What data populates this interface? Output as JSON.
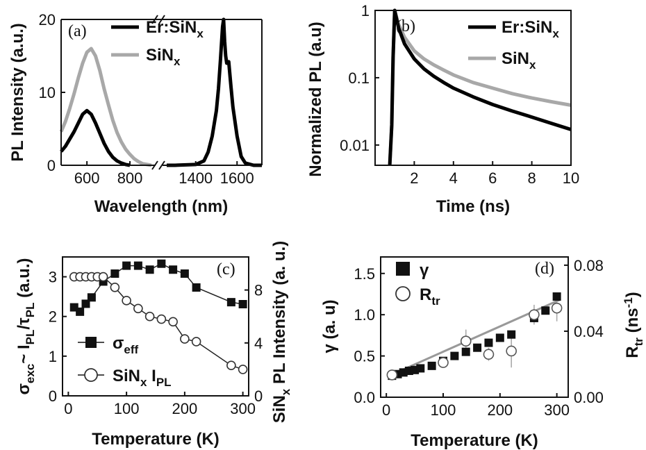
{
  "chart_data": [
    {
      "panel": "(a)",
      "type": "line",
      "xlabel": "Wavelength (nm)",
      "ylabel": "PL Intensity (a.u.)",
      "xlim_left": [
        480,
        900
      ],
      "xlim_right": [
        1260,
        1720
      ],
      "ylim": [
        0,
        20
      ],
      "xticks": [
        600,
        800,
        1400,
        1600
      ],
      "yticks": [
        0,
        10,
        20
      ],
      "axis_break": true,
      "legend_position": "top-right",
      "series": [
        {
          "name": "Er:SiN",
          "name_sub": "x",
          "color": "#000000",
          "segments": [
            {
              "x": [
                480,
                500,
                520,
                540,
                560,
                580,
                600,
                620,
                640,
                660,
                680,
                700,
                720,
                740,
                760,
                780,
                800
              ],
              "y": [
                1.9,
                2.6,
                3.6,
                4.6,
                5.8,
                7.0,
                7.5,
                7.0,
                5.8,
                4.4,
                3.0,
                1.9,
                1.1,
                0.6,
                0.3,
                0.1,
                0.0
              ]
            },
            {
              "x": [
                1260,
                1300,
                1400,
                1440,
                1460,
                1480,
                1500,
                1510,
                1520,
                1530,
                1535,
                1540,
                1545,
                1550,
                1560,
                1570,
                1580,
                1600,
                1620,
                1640,
                1680,
                1720
              ],
              "y": [
                0.0,
                0.0,
                0.1,
                0.6,
                1.8,
                4.0,
                7.5,
                10.5,
                14.5,
                19.0,
                20.0,
                17.0,
                15.0,
                14.0,
                14.2,
                11.0,
                8.0,
                4.0,
                1.2,
                0.3,
                0.0,
                0.0
              ]
            }
          ]
        },
        {
          "name": "SiN",
          "name_sub": "x",
          "color": "#a8a8a8",
          "segments": [
            {
              "x": [
                480,
                500,
                520,
                540,
                560,
                580,
                600,
                620,
                640,
                660,
                680,
                700,
                720,
                740,
                760,
                780,
                800,
                820,
                840,
                860,
                880,
                900
              ],
              "y": [
                4.6,
                6.0,
                7.8,
                9.8,
                12.0,
                14.0,
                15.5,
                16.0,
                15.0,
                13.0,
                10.5,
                8.3,
                6.2,
                4.5,
                3.2,
                2.2,
                1.5,
                0.9,
                0.5,
                0.2,
                0.1,
                0.0
              ]
            }
          ]
        }
      ]
    },
    {
      "panel": "(b)",
      "type": "line",
      "xlabel": "Time  (ns)",
      "ylabel": "Normalized PL (a.u)",
      "xlim": [
        0,
        10
      ],
      "ylim": [
        0.005,
        1
      ],
      "y_scale": "log",
      "xticks": [
        2,
        4,
        6,
        8,
        10
      ],
      "yticks": [
        0.01,
        0.1,
        1
      ],
      "ytick_labels": [
        "0.01",
        "0.1",
        "1"
      ],
      "legend_position": "top-right",
      "series": [
        {
          "name": "Er:SiN",
          "name_sub": "x",
          "color": "#000000",
          "x": [
            0.75,
            0.85,
            0.92,
            1.0,
            1.2,
            1.5,
            2.0,
            2.5,
            3.0,
            3.5,
            4.0,
            5.0,
            6.0,
            7.0,
            8.0,
            9.0,
            10.0
          ],
          "y": [
            0.005,
            0.02,
            0.2,
            1.0,
            0.55,
            0.32,
            0.19,
            0.135,
            0.105,
            0.085,
            0.07,
            0.052,
            0.04,
            0.032,
            0.026,
            0.021,
            0.017
          ]
        },
        {
          "name": "SiN",
          "name_sub": "x",
          "color": "#a8a8a8",
          "x": [
            0.75,
            0.85,
            0.92,
            1.0,
            1.2,
            1.5,
            2.0,
            2.5,
            3.0,
            3.5,
            4.0,
            5.0,
            6.0,
            7.0,
            8.0,
            9.0,
            10.0
          ],
          "y": [
            0.005,
            0.02,
            0.2,
            1.0,
            0.62,
            0.4,
            0.25,
            0.19,
            0.155,
            0.13,
            0.11,
            0.085,
            0.07,
            0.058,
            0.05,
            0.044,
            0.039
          ]
        }
      ]
    },
    {
      "panel": "(c)",
      "type": "scatter",
      "xlabel": "Temperature (K)",
      "ylabel_left": "σ",
      "ylabel_left_sub": "exc",
      "ylabel_left_mid": "~ I",
      "ylabel_left_sub2": "PL",
      "ylabel_left_mid2": "/τ",
      "ylabel_left_sub3": "PL",
      "ylabel_left_end": " (a.u.)",
      "ylabel_right": "SiN",
      "ylabel_right_sub": "x",
      "ylabel_right_end": " PL Intensity (a. u.)",
      "xlim": [
        -10,
        310
      ],
      "ylim_left": [
        0,
        3.5
      ],
      "ylim_right": [
        0,
        10.5
      ],
      "xticks": [
        0,
        100,
        200,
        300
      ],
      "yticks_left": [
        0,
        1,
        2,
        3
      ],
      "yticks_right": [
        0,
        4,
        8
      ],
      "legend_position": "bottom-left",
      "series": [
        {
          "name": "σ",
          "name_sub": "eff",
          "marker": "filled-square",
          "axis": "left",
          "x": [
            10,
            20,
            30,
            40,
            60,
            80,
            100,
            120,
            140,
            160,
            180,
            200,
            220,
            280,
            300
          ],
          "y": [
            2.23,
            2.12,
            2.32,
            2.48,
            2.88,
            3.08,
            3.28,
            3.28,
            3.18,
            3.33,
            3.18,
            3.08,
            2.73,
            2.36,
            2.31
          ]
        },
        {
          "name": "SiN",
          "name_sub": "x",
          "name_end": " I",
          "name_sub2": "PL",
          "marker": "open-circle",
          "axis": "right",
          "x": [
            10,
            20,
            30,
            40,
            50,
            60,
            80,
            100,
            120,
            140,
            160,
            180,
            200,
            220,
            280,
            300
          ],
          "y": [
            9.0,
            9.0,
            9.0,
            9.0,
            9.0,
            9.0,
            8.2,
            7.2,
            6.6,
            6.0,
            5.8,
            5.6,
            4.3,
            4.1,
            2.3,
            2.0
          ]
        }
      ]
    },
    {
      "panel": "(d)",
      "type": "scatter",
      "xlabel": "Temperature (K)",
      "ylabel_left": "γ (a. u)",
      "ylabel_right": "R",
      "ylabel_right_sub": "tr",
      "ylabel_right_end": " (ns",
      "ylabel_right_sup": "-1",
      "ylabel_right_close": ")",
      "xlim": [
        -10,
        320
      ],
      "ylim_left": [
        0,
        1.7
      ],
      "ylim_right": [
        0,
        0.085
      ],
      "xticks": [
        0,
        100,
        200,
        300
      ],
      "yticks_left": [
        0.0,
        0.5,
        1.0,
        1.5
      ],
      "ytick_left_labels": [
        "0.0",
        "0.5",
        "1.0",
        "1.5"
      ],
      "yticks_right": [
        0.0,
        0.04,
        0.08
      ],
      "ytick_right_labels": [
        "0.00",
        "0.04",
        "0.08"
      ],
      "legend_position": "top-left",
      "series": [
        {
          "name": "γ",
          "marker": "filled-square",
          "axis": "left",
          "x": [
            10,
            20,
            30,
            40,
            50,
            60,
            80,
            100,
            120,
            140,
            160,
            180,
            200,
            220,
            260,
            280,
            300
          ],
          "y": [
            0.26,
            0.28,
            0.3,
            0.32,
            0.33,
            0.35,
            0.38,
            0.44,
            0.5,
            0.55,
            0.6,
            0.66,
            0.72,
            0.76,
            0.96,
            1.05,
            1.22
          ]
        },
        {
          "name": "R",
          "name_sub": "tr",
          "marker": "open-circle",
          "axis": "right",
          "x": [
            10,
            100,
            140,
            180,
            220,
            260,
            300
          ],
          "y": [
            0.0135,
            0.021,
            0.034,
            0.026,
            0.028,
            0.05,
            0.054
          ],
          "error": [
            0.003,
            0.003,
            0.007,
            0.004,
            0.01,
            0.006,
            0.008
          ]
        }
      ],
      "fit_line": {
        "x": [
          5,
          305
        ],
        "y": [
          0.26,
          1.18
        ]
      }
    }
  ]
}
